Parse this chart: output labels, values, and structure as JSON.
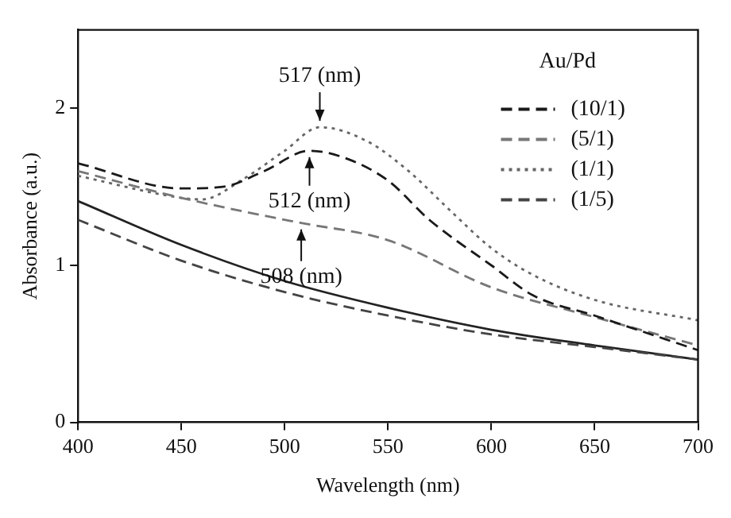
{
  "chart_data": {
    "type": "line",
    "xlabel": "Wavelength (nm)",
    "ylabel": "Absorbance (a.u.)",
    "legend_title": "Au/Pd",
    "x": [
      400,
      450,
      500,
      550,
      600,
      650,
      700
    ],
    "series": [
      {
        "name": "(10/1)",
        "color": "#1a1a1a",
        "line_style": "dashed",
        "x": [
          400,
          450,
          470,
          490,
          512,
          530,
          550,
          570,
          600,
          620,
          650,
          700
        ],
        "values": [
          1.65,
          1.49,
          1.5,
          1.6,
          1.73,
          1.68,
          1.54,
          1.29,
          1.0,
          0.81,
          0.68,
          0.46
        ]
      },
      {
        "name": "(5/1)",
        "color": "#777777",
        "line_style": "dashed",
        "x": [
          400,
          450,
          500,
          508,
          550,
          600,
          650,
          700
        ],
        "values": [
          1.6,
          1.43,
          1.29,
          1.27,
          1.16,
          0.86,
          0.67,
          0.49
        ]
      },
      {
        "name": "(1/1)",
        "color": "#666666",
        "line_style": "dotted",
        "x": [
          400,
          450,
          460,
          480,
          500,
          517,
          540,
          560,
          580,
          600,
          620,
          650,
          700
        ],
        "values": [
          1.57,
          1.43,
          1.42,
          1.55,
          1.73,
          1.88,
          1.79,
          1.6,
          1.35,
          1.11,
          0.94,
          0.78,
          0.65
        ]
      },
      {
        "name": "(1/5)",
        "color": "#444444",
        "line_style": "dashed",
        "values": [
          1.29,
          1.03,
          0.83,
          0.68,
          0.56,
          0.48,
          0.4
        ]
      },
      {
        "color": "#222222",
        "line_style": "solid",
        "values": [
          1.41,
          1.13,
          0.9,
          0.73,
          0.59,
          0.49,
          0.4
        ]
      }
    ],
    "annotations": [
      {
        "text": "517 (nm)",
        "x": 517,
        "y": 1.88
      },
      {
        "text": "512 (nm)",
        "x": 512,
        "y": 1.73
      },
      {
        "text": "508 (nm)",
        "x": 508,
        "y": 1.27
      }
    ],
    "xlim": [
      400,
      700
    ],
    "xticks": [
      400,
      450,
      500,
      550,
      600,
      650,
      700
    ],
    "ylim": [
      0,
      2.5
    ],
    "yticks": [
      0,
      1,
      2
    ],
    "grid": false,
    "legend": "top right",
    "marker": "none"
  }
}
